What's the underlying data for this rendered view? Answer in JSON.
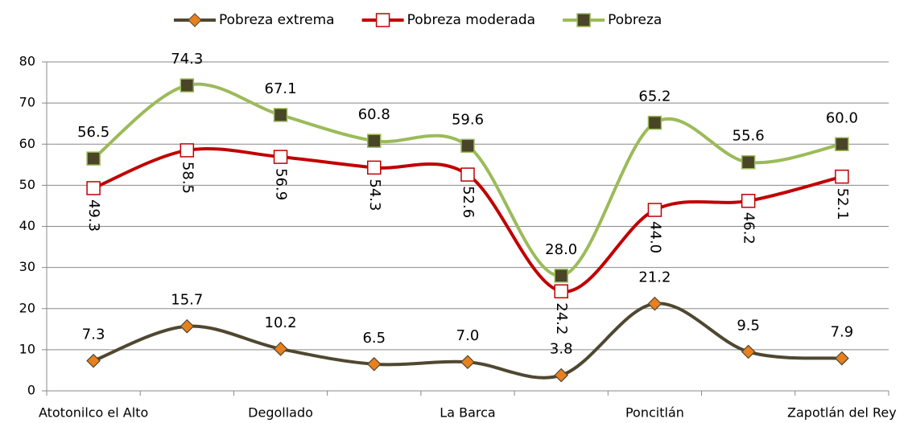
{
  "chart_data": {
    "type": "line",
    "categories": [
      "Atotonilco el Alto",
      null,
      "Degollado",
      null,
      "La Barca",
      null,
      "Poncitlán",
      null,
      "Zapotlán del Rey"
    ],
    "series": [
      {
        "name": "Pobreza extrema",
        "color": "#4f4730",
        "marker_color": "#e8801e",
        "marker": "diamond",
        "values": [
          7.3,
          15.7,
          10.2,
          6.5,
          7.0,
          3.8,
          21.2,
          9.5,
          7.9
        ],
        "value_labels": [
          "7.3",
          "15.7",
          "10.2",
          "6.5",
          "7.0",
          "3.8",
          "21.2",
          "9.5",
          "7.9"
        ]
      },
      {
        "name": "Pobreza moderada",
        "color": "#c00000",
        "marker_color": "#ffffff",
        "marker": "square",
        "values": [
          49.3,
          58.5,
          56.9,
          54.3,
          52.6,
          24.2,
          44.0,
          46.2,
          52.1
        ],
        "value_labels": [
          "49.3",
          "58.5",
          "56.9",
          "54.3",
          "52.6",
          "24.2",
          "44.0",
          "46.2",
          "52.1"
        ]
      },
      {
        "name": "Pobreza",
        "color": "#9bbb59",
        "marker_color": "#4a4527",
        "marker": "square",
        "values": [
          56.5,
          74.3,
          67.1,
          60.8,
          59.6,
          28.0,
          65.2,
          55.6,
          60.0
        ],
        "value_labels": [
          "56.5",
          "74.3",
          "67.1",
          "60.8",
          "59.6",
          "28.0",
          "65.2",
          "55.6",
          "60.0"
        ]
      }
    ],
    "ylim": [
      0,
      80
    ],
    "yticks": [
      0,
      10,
      20,
      30,
      40,
      50,
      60,
      70,
      80
    ],
    "grid": true,
    "legend": "top"
  }
}
